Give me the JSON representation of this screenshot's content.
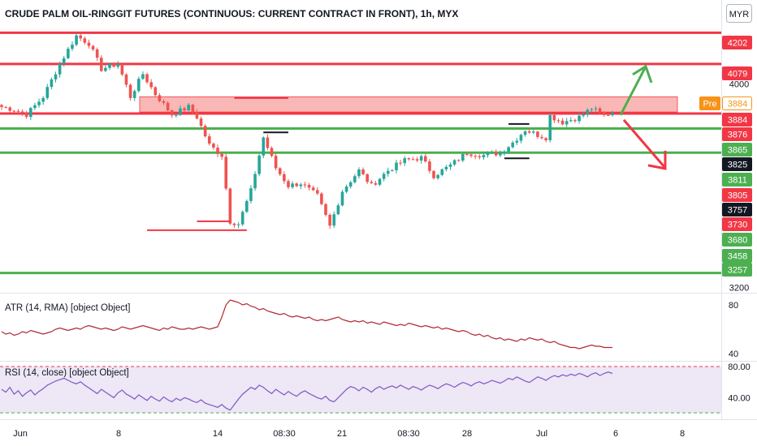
{
  "header": {
    "title": "CRUDE PALM OIL-RINGGIT FUTURES (CONTINUOUS: CURRENT CONTRACT IN FRONT), 1h, MYX",
    "currency_button": "MYR"
  },
  "colors": {
    "up": "#26a69a",
    "down": "#ef5350",
    "resistance": "#f23645",
    "support": "#4caf50",
    "zone_fill": "#f7a09c",
    "atr_line": "#b22833",
    "rsi_line": "#7e57c2",
    "rsi_band": "#ede7f6",
    "pre_tag": "#f7931a"
  },
  "chart_data": [
    {
      "type": "candlestick",
      "title": "CRUDE PALM OIL-RINGGIT FUTURES (CONTINUOUS: CURRENT CONTRACT IN FRONT), 1h, MYX",
      "ylim": [
        3195,
        4235
      ],
      "y_ticks": [
        3200,
        4000
      ],
      "x_ticks": [
        "Jun",
        "8",
        "14",
        "08:30",
        "21",
        "08:30",
        "28",
        "Jul",
        "6",
        "8"
      ],
      "anchors": [
        {
          "i": 0,
          "price": 3910
        },
        {
          "i": 3,
          "price": 3900
        },
        {
          "i": 6,
          "price": 3880
        },
        {
          "i": 10,
          "price": 3950
        },
        {
          "i": 14,
          "price": 4080
        },
        {
          "i": 18,
          "price": 4190
        },
        {
          "i": 21,
          "price": 4160
        },
        {
          "i": 24,
          "price": 4060
        },
        {
          "i": 28,
          "price": 4080
        },
        {
          "i": 31,
          "price": 3950
        },
        {
          "i": 34,
          "price": 4040
        },
        {
          "i": 37,
          "price": 3960
        },
        {
          "i": 41,
          "price": 3880
        },
        {
          "i": 45,
          "price": 3910
        },
        {
          "i": 47,
          "price": 3870
        },
        {
          "i": 50,
          "price": 3760
        },
        {
          "i": 53,
          "price": 3720
        },
        {
          "i": 55,
          "price": 3460
        },
        {
          "i": 57,
          "price": 3450
        },
        {
          "i": 60,
          "price": 3580
        },
        {
          "i": 63,
          "price": 3790
        },
        {
          "i": 66,
          "price": 3670
        },
        {
          "i": 69,
          "price": 3600
        },
        {
          "i": 72,
          "price": 3610
        },
        {
          "i": 76,
          "price": 3560
        },
        {
          "i": 79,
          "price": 3440
        },
        {
          "i": 82,
          "price": 3580
        },
        {
          "i": 86,
          "price": 3660
        },
        {
          "i": 89,
          "price": 3600
        },
        {
          "i": 93,
          "price": 3660
        },
        {
          "i": 97,
          "price": 3700
        },
        {
          "i": 101,
          "price": 3710
        },
        {
          "i": 104,
          "price": 3640
        },
        {
          "i": 108,
          "price": 3680
        },
        {
          "i": 112,
          "price": 3730
        },
        {
          "i": 116,
          "price": 3720
        },
        {
          "i": 120,
          "price": 3730
        },
        {
          "i": 123,
          "price": 3770
        },
        {
          "i": 126,
          "price": 3820
        },
        {
          "i": 129,
          "price": 3800
        },
        {
          "i": 131,
          "price": 3790
        },
        {
          "i": 132,
          "price": 3875
        },
        {
          "i": 135,
          "price": 3850
        },
        {
          "i": 139,
          "price": 3870
        },
        {
          "i": 142,
          "price": 3905
        },
        {
          "i": 145,
          "price": 3875
        },
        {
          "i": 147,
          "price": 3890
        }
      ],
      "candle_count": 148,
      "horizontal_levels": [
        {
          "price": 4202,
          "label": "4202",
          "kind": "resistance"
        },
        {
          "price": 4079,
          "label": "4079",
          "kind": "resistance"
        },
        {
          "price": 3884,
          "label": "3884",
          "kind": "resistance"
        },
        {
          "price": 3825,
          "label": "3825",
          "kind": "support"
        },
        {
          "price": 3730,
          "label": "3730",
          "kind": "support"
        },
        {
          "price": 3257,
          "label": "3257",
          "kind": "support"
        }
      ],
      "resistance_zone": {
        "from_price": 3890,
        "to_price": 3950
      },
      "price_tags": [
        {
          "label": "4202",
          "kind": "red"
        },
        {
          "label": "4079",
          "kind": "red"
        },
        {
          "label": "Pre",
          "kind": "pre"
        },
        {
          "label": "3884",
          "kind": "pre-outline"
        },
        {
          "label": "3884",
          "kind": "red"
        },
        {
          "label": "3876",
          "kind": "red"
        },
        {
          "label": "3865",
          "kind": "green"
        },
        {
          "label": "3825",
          "kind": "dark"
        },
        {
          "label": "3811",
          "kind": "green"
        },
        {
          "label": "3805",
          "kind": "red"
        },
        {
          "label": "3757",
          "kind": "dark"
        },
        {
          "label": "3730",
          "kind": "red"
        },
        {
          "label": "3680",
          "kind": "green"
        },
        {
          "label": "3458",
          "kind": "green"
        },
        {
          "label": "3257",
          "kind": "green"
        }
      ],
      "annotations": [
        "up-arrow",
        "down-arrow"
      ]
    },
    {
      "type": "line",
      "title": "ATR (14, RMA) [object Object]",
      "ylim": [
        36,
        88
      ],
      "y_ticks": [
        40,
        80
      ],
      "values": [
        58,
        56,
        57,
        55,
        56,
        58,
        57,
        59,
        58,
        57,
        56,
        57,
        58,
        60,
        61,
        60,
        59,
        60,
        61,
        60,
        62,
        63,
        62,
        61,
        60,
        61,
        60,
        59,
        60,
        62,
        61,
        60,
        61,
        62,
        63,
        62,
        61,
        60,
        59,
        61,
        60,
        62,
        61,
        60,
        60,
        61,
        60,
        61,
        62,
        61,
        60,
        61,
        62,
        70,
        80,
        84,
        83,
        82,
        80,
        81,
        79,
        78,
        76,
        77,
        75,
        74,
        73,
        72,
        73,
        71,
        70,
        71,
        70,
        69,
        70,
        68,
        67,
        68,
        67,
        68,
        69,
        70,
        68,
        67,
        66,
        67,
        66,
        67,
        65,
        66,
        65,
        64,
        66,
        65,
        64,
        63,
        64,
        63,
        65,
        64,
        63,
        62,
        63,
        62,
        61,
        62,
        60,
        61,
        60,
        59,
        58,
        59,
        58,
        56,
        55,
        56,
        54,
        55,
        53,
        52,
        53,
        51,
        52,
        51,
        50,
        52,
        51,
        53,
        52,
        51,
        52,
        50,
        49,
        50,
        48,
        47,
        46,
        45,
        45,
        44,
        45,
        46,
        47,
        46,
        46,
        45,
        45,
        45
      ]
    },
    {
      "type": "line",
      "title": "RSI (14, close) [object Object]",
      "ylim": [
        0,
        100
      ],
      "y_ticks": [
        40,
        80
      ],
      "y_tick_labels": [
        "40.00",
        "80.00"
      ],
      "band": [
        30,
        70
      ],
      "values": [
        52,
        48,
        55,
        45,
        50,
        42,
        47,
        51,
        44,
        49,
        53,
        58,
        61,
        64,
        66,
        68,
        65,
        62,
        60,
        63,
        58,
        54,
        50,
        46,
        52,
        48,
        44,
        40,
        47,
        51,
        45,
        42,
        38,
        44,
        40,
        36,
        42,
        38,
        35,
        41,
        37,
        34,
        39,
        36,
        40,
        38,
        35,
        33,
        37,
        32,
        30,
        28,
        26,
        30,
        25,
        22,
        30,
        38,
        45,
        50,
        55,
        52,
        58,
        55,
        50,
        46,
        52,
        48,
        44,
        49,
        45,
        42,
        47,
        50,
        46,
        43,
        40,
        38,
        42,
        36,
        34,
        40,
        46,
        52,
        56,
        54,
        50,
        55,
        52,
        48,
        53,
        56,
        52,
        55,
        57,
        54,
        58,
        55,
        52,
        56,
        54,
        51,
        55,
        58,
        56,
        53,
        57,
        60,
        58,
        55,
        59,
        62,
        60,
        57,
        61,
        63,
        60,
        62,
        65,
        63,
        61,
        64,
        68,
        66,
        70,
        67,
        64,
        62,
        66,
        70,
        68,
        65,
        69,
        72,
        70,
        73,
        71,
        74,
        72,
        75,
        73,
        70,
        74,
        76,
        72,
        75,
        77,
        75
      ]
    }
  ]
}
